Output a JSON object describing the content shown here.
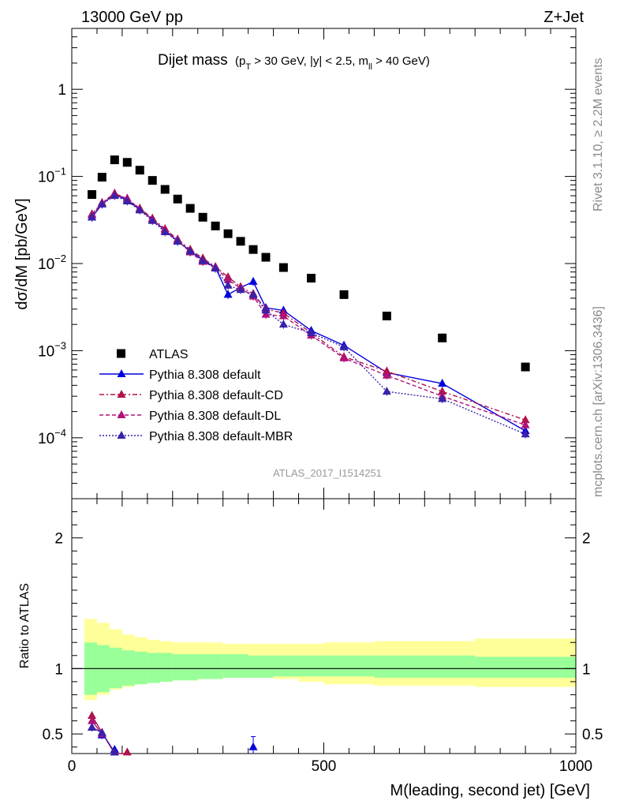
{
  "header": {
    "left": "13000 GeV pp",
    "right": "Z+Jet"
  },
  "side": {
    "rivet": "Rivet 3.1.10, ≥ 2.2M events",
    "mcplots": "mcplots.cern.ch [arXiv:1306.3436]"
  },
  "chart_data": [
    {
      "type": "scatter",
      "title_main": "Dijet mass",
      "title_sub": "(p",
      "title_sub_T": "T",
      "title_sub_mid": " > 30 GeV, |y| < 2.5, m",
      "title_sub_ll": "ll",
      "title_sub_end": " > 40 GeV)",
      "xlabel": "M(leading, second jet) [GeV]",
      "ylabel": "dσ/dM [pb/GeV]",
      "xlim": [
        0,
        1000
      ],
      "ylim": [
        2e-05,
        5
      ],
      "yscale": "log",
      "watermark": "ATLAS_2017_I1514251",
      "x_ticks": [
        "0",
        "500",
        "1000"
      ],
      "y_ticks": [
        {
          "v": 1,
          "base": "1",
          "exp": ""
        },
        {
          "v": 0.1,
          "base": "10",
          "exp": "−1"
        },
        {
          "v": 0.01,
          "base": "10",
          "exp": "−2"
        },
        {
          "v": 0.001,
          "base": "10",
          "exp": "−3"
        },
        {
          "v": 0.0001,
          "base": "10",
          "exp": "−4"
        }
      ],
      "legend_position": "middle-left",
      "series": [
        {
          "name": "ATLAS",
          "color": "#000000",
          "style": "marker",
          "x": [
            40,
            60,
            85,
            110,
            135,
            160,
            185,
            210,
            235,
            260,
            285,
            310,
            335,
            360,
            385,
            420,
            475,
            540,
            625,
            735,
            900
          ],
          "y": [
            0.062,
            0.098,
            0.155,
            0.145,
            0.118,
            0.09,
            0.071,
            0.055,
            0.043,
            0.034,
            0.027,
            0.022,
            0.018,
            0.0145,
            0.0118,
            0.009,
            0.0068,
            0.0044,
            0.0025,
            0.0014,
            0.00065
          ]
        },
        {
          "name": "Pythia 8.308 default",
          "color": "#0000dd",
          "style": "solid",
          "x": [
            40,
            60,
            85,
            110,
            135,
            160,
            185,
            210,
            235,
            260,
            285,
            310,
            335,
            360,
            385,
            420,
            475,
            540,
            625,
            735,
            900
          ],
          "y": [
            0.034,
            0.048,
            0.063,
            0.053,
            0.042,
            0.032,
            0.024,
            0.018,
            0.014,
            0.011,
            0.009,
            0.0044,
            0.0053,
            0.0062,
            0.0031,
            0.0029,
            0.0017,
            0.00115,
            0.00056,
            0.00042,
            0.00012
          ]
        },
        {
          "name": "Pythia 8.308 default-CD",
          "color": "#b0124a",
          "style": "dashdot",
          "x": [
            40,
            60,
            85,
            110,
            135,
            160,
            185,
            210,
            235,
            260,
            285,
            310,
            335,
            360,
            385,
            420,
            475,
            540,
            625,
            735,
            900
          ],
          "y": [
            0.037,
            0.05,
            0.064,
            0.055,
            0.043,
            0.033,
            0.025,
            0.019,
            0.0145,
            0.0115,
            0.0092,
            0.007,
            0.0054,
            0.0045,
            0.003,
            0.0027,
            0.0016,
            0.00085,
            0.00058,
            0.00034,
            0.00016
          ]
        },
        {
          "name": "Pythia 8.308 default-DL",
          "color": "#b0127a",
          "style": "dashed",
          "x": [
            40,
            60,
            85,
            110,
            135,
            160,
            185,
            210,
            235,
            260,
            285,
            310,
            335,
            360,
            385,
            420,
            475,
            540,
            625,
            735,
            900
          ],
          "y": [
            0.036,
            0.049,
            0.062,
            0.056,
            0.042,
            0.032,
            0.024,
            0.0185,
            0.0135,
            0.0105,
            0.009,
            0.0065,
            0.0052,
            0.0042,
            0.0026,
            0.0025,
            0.0015,
            0.00082,
            0.00052,
            0.0003,
            0.00014
          ]
        },
        {
          "name": "Pythia 8.308 default-MBR",
          "color": "#3a22a8",
          "style": "dotted",
          "x": [
            40,
            60,
            85,
            110,
            135,
            160,
            185,
            210,
            235,
            260,
            285,
            310,
            335,
            360,
            385,
            420,
            475,
            540,
            625,
            735,
            900
          ],
          "y": [
            0.034,
            0.048,
            0.06,
            0.052,
            0.041,
            0.031,
            0.023,
            0.018,
            0.0138,
            0.0108,
            0.0088,
            0.0056,
            0.005,
            0.0044,
            0.0029,
            0.002,
            0.0016,
            0.0011,
            0.00034,
            0.00028,
            0.00011
          ]
        }
      ]
    },
    {
      "type": "scatter",
      "ylabel": "Ratio to ATLAS",
      "xlim": [
        0,
        1000
      ],
      "ylim": [
        0.35,
        2.3
      ],
      "y_ticks": [
        "0.5",
        "1",
        "2"
      ],
      "band_x": [
        25,
        50,
        75,
        100,
        125,
        150,
        175,
        200,
        250,
        300,
        350,
        400,
        450,
        500,
        600,
        800,
        1000
      ],
      "band_inner": [
        [
          0.8,
          1.2
        ],
        [
          0.82,
          1.18
        ],
        [
          0.85,
          1.16
        ],
        [
          0.87,
          1.14
        ],
        [
          0.88,
          1.13
        ],
        [
          0.89,
          1.12
        ],
        [
          0.9,
          1.12
        ],
        [
          0.91,
          1.11
        ],
        [
          0.92,
          1.11
        ],
        [
          0.93,
          1.11
        ],
        [
          0.93,
          1.1
        ],
        [
          0.94,
          1.1
        ],
        [
          0.94,
          1.1
        ],
        [
          0.94,
          1.1
        ],
        [
          0.93,
          1.1
        ],
        [
          0.93,
          1.09
        ]
      ],
      "band_outer": [
        [
          0.76,
          1.38
        ],
        [
          0.8,
          1.35
        ],
        [
          0.84,
          1.3
        ],
        [
          0.86,
          1.26
        ],
        [
          0.88,
          1.24
        ],
        [
          0.89,
          1.22
        ],
        [
          0.9,
          1.21
        ],
        [
          0.91,
          1.2
        ],
        [
          0.92,
          1.2
        ],
        [
          0.93,
          1.19
        ],
        [
          0.93,
          1.19
        ],
        [
          0.92,
          1.19
        ],
        [
          0.9,
          1.19
        ],
        [
          0.88,
          1.2
        ],
        [
          0.87,
          1.21
        ],
        [
          0.86,
          1.23
        ]
      ],
      "series": [
        {
          "name": "Pythia 8.308 default",
          "color": "#0000dd",
          "x": [
            40,
            60,
            85,
            360
          ],
          "y": [
            0.55,
            0.49,
            0.38,
            0.4
          ]
        },
        {
          "name": "Pythia 8.308 default-CD",
          "color": "#b0124a",
          "x": [
            40,
            60,
            85,
            110
          ],
          "y": [
            0.64,
            0.51,
            0.35,
            0.35
          ]
        },
        {
          "name": "Pythia 8.308 default-DL",
          "color": "#b0127a",
          "x": [
            40,
            60
          ],
          "y": [
            0.6,
            0.5
          ]
        },
        {
          "name": "Pythia 8.308 default-MBR",
          "color": "#3a22a8",
          "x": [
            40,
            60,
            85
          ],
          "y": [
            0.55,
            0.51,
            0.36
          ]
        }
      ]
    }
  ]
}
